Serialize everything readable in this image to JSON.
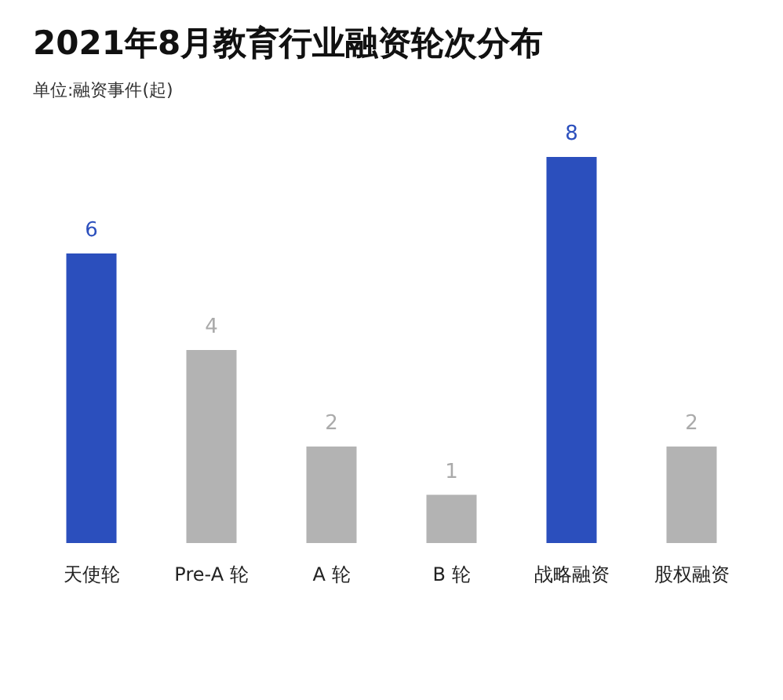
{
  "chart_data": {
    "type": "bar",
    "title": "2021年8月教育行业融资轮次分布",
    "subtitle": "单位:融资事件(起)",
    "categories": [
      "天使轮",
      "Pre-A 轮",
      "A 轮",
      "B 轮",
      "战略融资",
      "股权融资"
    ],
    "values": [
      6,
      4,
      2,
      1,
      8,
      2
    ],
    "colors": [
      "#2b4fbd",
      "#b3b3b3",
      "#b3b3b3",
      "#b3b3b3",
      "#2b4fbd",
      "#b3b3b3"
    ],
    "data_labels": true
  }
}
